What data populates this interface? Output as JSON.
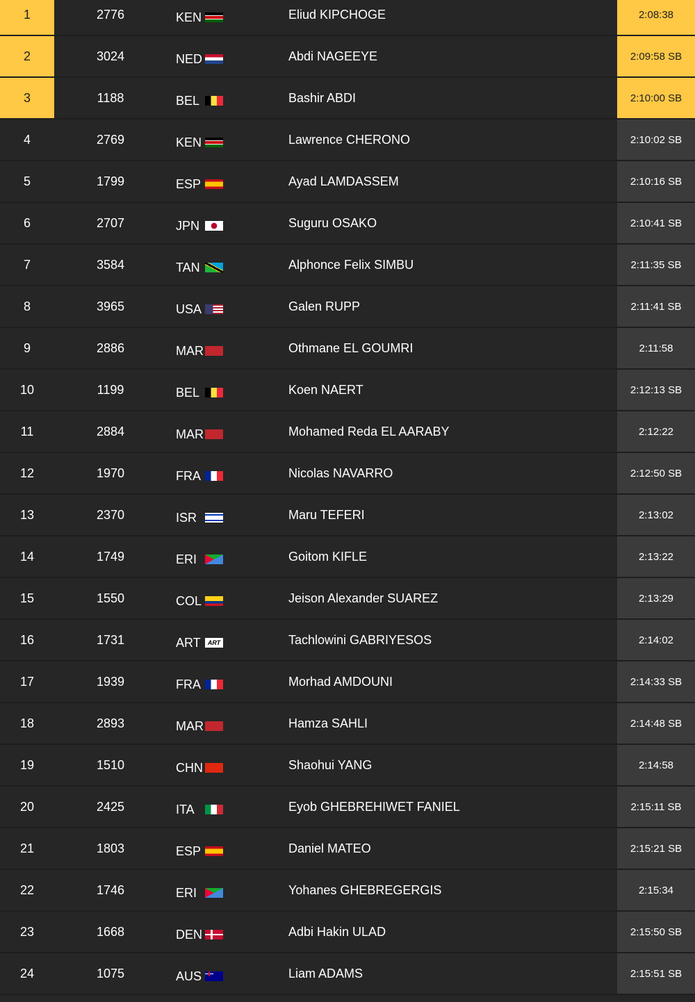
{
  "colors": {
    "medal": "#ffc845",
    "background": "#262626",
    "time_cell": "#3b3b3b"
  },
  "results": [
    {
      "rank": "1",
      "bib": "2776",
      "country": "KEN",
      "flag": "flag-ken",
      "name": "Eliud KIPCHOGE",
      "time": "2:08:38",
      "medal": true
    },
    {
      "rank": "2",
      "bib": "3024",
      "country": "NED",
      "flag": "flag-ned",
      "name": "Abdi NAGEEYE",
      "time": "2:09:58 SB",
      "medal": true
    },
    {
      "rank": "3",
      "bib": "1188",
      "country": "BEL",
      "flag": "flag-bel",
      "name": "Bashir ABDI",
      "time": "2:10:00 SB",
      "medal": true
    },
    {
      "rank": "4",
      "bib": "2769",
      "country": "KEN",
      "flag": "flag-ken",
      "name": "Lawrence CHERONO",
      "time": "2:10:02 SB"
    },
    {
      "rank": "5",
      "bib": "1799",
      "country": "ESP",
      "flag": "flag-esp",
      "name": "Ayad LAMDASSEM",
      "time": "2:10:16 SB"
    },
    {
      "rank": "6",
      "bib": "2707",
      "country": "JPN",
      "flag": "flag-jpn",
      "name": "Suguru OSAKO",
      "time": "2:10:41 SB"
    },
    {
      "rank": "7",
      "bib": "3584",
      "country": "TAN",
      "flag": "flag-tan",
      "name": "Alphonce Felix SIMBU",
      "time": "2:11:35 SB"
    },
    {
      "rank": "8",
      "bib": "3965",
      "country": "USA",
      "flag": "flag-usa",
      "name": "Galen RUPP",
      "time": "2:11:41 SB"
    },
    {
      "rank": "9",
      "bib": "2886",
      "country": "MAR",
      "flag": "flag-mar",
      "name": "Othmane EL GOUMRI",
      "time": "2:11:58"
    },
    {
      "rank": "10",
      "bib": "1199",
      "country": "BEL",
      "flag": "flag-bel",
      "name": "Koen NAERT",
      "time": "2:12:13 SB"
    },
    {
      "rank": "11",
      "bib": "2884",
      "country": "MAR",
      "flag": "flag-mar",
      "name": "Mohamed Reda EL AARABY",
      "time": "2:12:22"
    },
    {
      "rank": "12",
      "bib": "1970",
      "country": "FRA",
      "flag": "flag-fra",
      "name": "Nicolas NAVARRO",
      "time": "2:12:50 SB"
    },
    {
      "rank": "13",
      "bib": "2370",
      "country": "ISR",
      "flag": "flag-isr",
      "name": "Maru TEFERI",
      "time": "2:13:02"
    },
    {
      "rank": "14",
      "bib": "1749",
      "country": "ERI",
      "flag": "flag-eri",
      "name": "Goitom KIFLE",
      "time": "2:13:22"
    },
    {
      "rank": "15",
      "bib": "1550",
      "country": "COL",
      "flag": "flag-col",
      "name": "Jeison Alexander SUAREZ",
      "time": "2:13:29"
    },
    {
      "rank": "16",
      "bib": "1731",
      "country": "ART",
      "flag": "flag-art",
      "flag_text": "ART",
      "name": "Tachlowini GABRIYESOS",
      "time": "2:14:02"
    },
    {
      "rank": "17",
      "bib": "1939",
      "country": "FRA",
      "flag": "flag-fra",
      "name": "Morhad AMDOUNI",
      "time": "2:14:33 SB"
    },
    {
      "rank": "18",
      "bib": "2893",
      "country": "MAR",
      "flag": "flag-mar",
      "name": "Hamza SAHLI",
      "time": "2:14:48 SB"
    },
    {
      "rank": "19",
      "bib": "1510",
      "country": "CHN",
      "flag": "flag-chn",
      "name": "Shaohui YANG",
      "time": "2:14:58"
    },
    {
      "rank": "20",
      "bib": "2425",
      "country": "ITA",
      "flag": "flag-ita",
      "name": "Eyob GHEBREHIWET FANIEL",
      "time": "2:15:11 SB"
    },
    {
      "rank": "21",
      "bib": "1803",
      "country": "ESP",
      "flag": "flag-esp",
      "name": "Daniel MATEO",
      "time": "2:15:21 SB"
    },
    {
      "rank": "22",
      "bib": "1746",
      "country": "ERI",
      "flag": "flag-eri",
      "name": "Yohanes GHEBREGERGIS",
      "time": "2:15:34"
    },
    {
      "rank": "23",
      "bib": "1668",
      "country": "DEN",
      "flag": "flag-den",
      "name": "Adbi Hakin ULAD",
      "time": "2:15:50 SB"
    },
    {
      "rank": "24",
      "bib": "1075",
      "country": "AUS",
      "flag": "flag-aus",
      "name": "Liam ADAMS",
      "time": "2:15:51 SB"
    }
  ]
}
